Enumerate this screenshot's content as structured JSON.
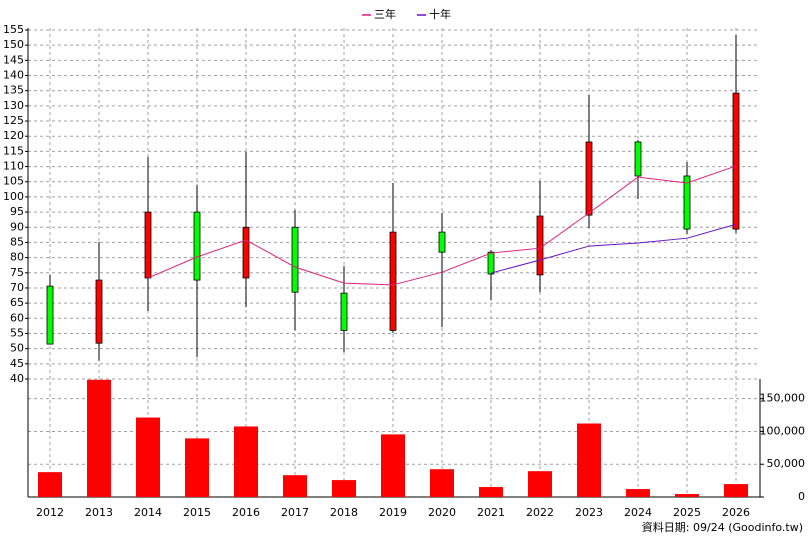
{
  "chart_data": {
    "type": "candlestick",
    "categories": [
      "2012",
      "2013",
      "2014",
      "2015",
      "2016",
      "2017",
      "2018",
      "2019",
      "2020",
      "2021",
      "2022",
      "2023",
      "2024",
      "2025",
      "2026"
    ],
    "open": [
      70.6,
      51.8,
      73.3,
      95,
      73.3,
      90,
      68.3,
      56,
      88.4,
      81.8,
      74.3,
      94,
      118.1,
      106.9,
      89.4
    ],
    "high": [
      74.3,
      85.1,
      113.1,
      103.9,
      114.8,
      95.7,
      77.2,
      104.6,
      94.7,
      82.5,
      105.2,
      133.6,
      118.7,
      111.5,
      153.4
    ],
    "low": [
      51.5,
      46,
      62.4,
      47.2,
      63.7,
      56,
      48.9,
      55.1,
      57.1,
      66,
      68.6,
      89.7,
      99.3,
      87.8,
      88.1
    ],
    "close": [
      51.5,
      72.6,
      95,
      72.6,
      90,
      68.6,
      56,
      88.4,
      81.8,
      74.6,
      93.7,
      118.1,
      106.9,
      89.4,
      134.2
    ],
    "up_color": "#ff0000",
    "down_color": "#00ff00",
    "series": [
      {
        "name": "三年",
        "color": "#e0207f",
        "values": [
          null,
          null,
          73.3,
          80.2,
          85.8,
          76.9,
          71.6,
          71,
          75.2,
          81.5,
          83.1,
          94.7,
          106.5,
          104.6,
          110.2
        ]
      },
      {
        "name": "十年",
        "color": "#6a10c8",
        "values": [
          null,
          null,
          null,
          null,
          null,
          null,
          null,
          null,
          null,
          74.9,
          79.2,
          83.8,
          84.8,
          86.4,
          91
        ]
      }
    ],
    "volume": [
      37900,
      178800,
      121200,
      89400,
      107600,
      33300,
      25800,
      95500,
      42400,
      15200,
      39400,
      112100,
      12100,
      4500,
      19700
    ],
    "volume_color": "#ff0000",
    "ylim": [
      40,
      155
    ],
    "yticks": [
      40,
      45,
      50,
      55,
      60,
      65,
      70,
      75,
      80,
      85,
      90,
      95,
      100,
      105,
      110,
      115,
      120,
      125,
      130,
      135,
      140,
      145,
      150,
      155
    ],
    "y2lim": [
      0,
      180000
    ],
    "y2ticks": [
      0,
      {
        "value": 50000,
        "label": "50,000"
      },
      {
        "value": 100000,
        "label": "100,000"
      },
      {
        "value": 150000,
        "label": "150,000"
      }
    ],
    "grid": true,
    "note": "資料日期: 09/24 (Goodinfo.tw)"
  }
}
